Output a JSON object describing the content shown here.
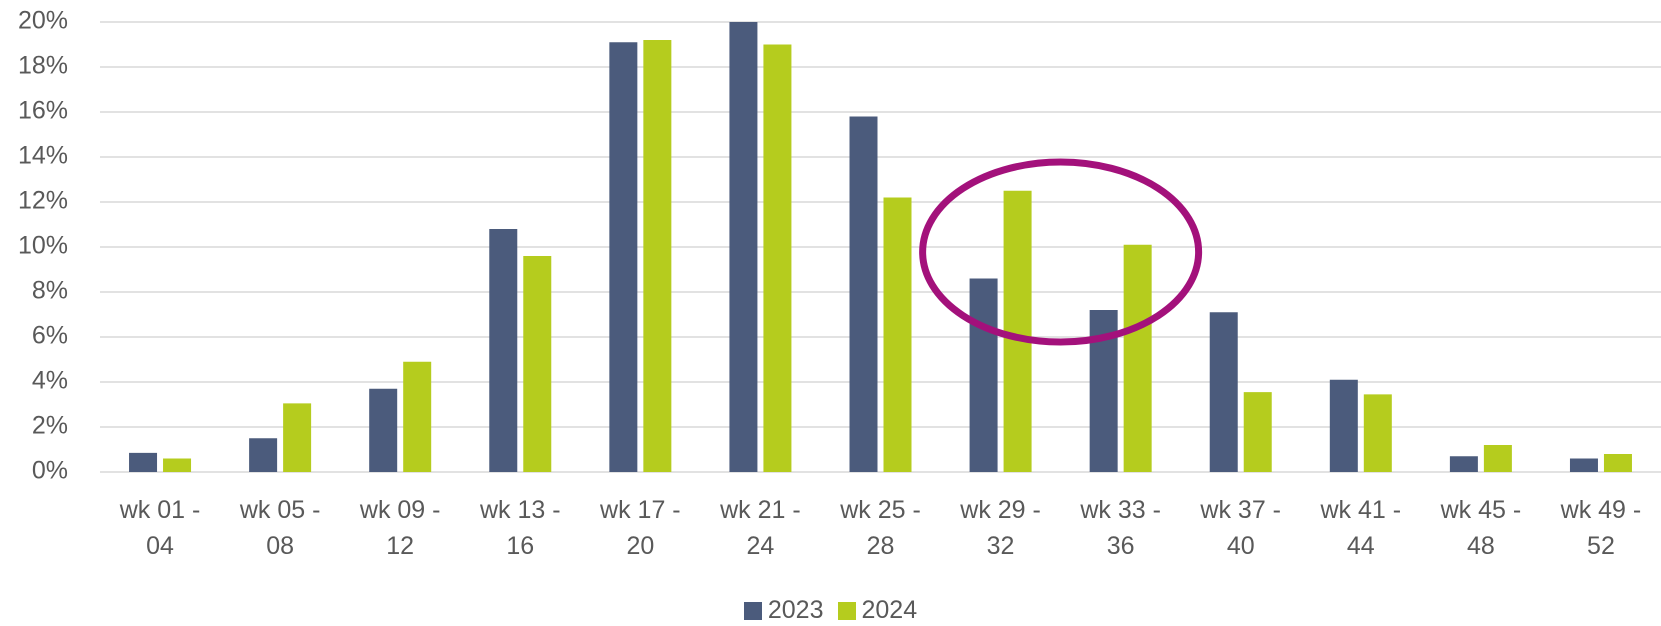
{
  "chart_data": {
    "type": "bar",
    "categories": [
      "wk 01 - 04",
      "wk 05 - 08",
      "wk 09 - 12",
      "wk 13 - 16",
      "wk 17 - 20",
      "wk 21 - 24",
      "wk 25 - 28",
      "wk 29 - 32",
      "wk 33 - 36",
      "wk 37 - 40",
      "wk 41 - 44",
      "wk 45 - 48",
      "wk 49 - 52"
    ],
    "series": [
      {
        "name": "2023",
        "color": "#4b5b7c",
        "values": [
          0.85,
          1.5,
          3.7,
          10.8,
          19.1,
          20.0,
          15.8,
          8.6,
          7.2,
          7.1,
          4.1,
          0.7,
          0.6
        ]
      },
      {
        "name": "2024",
        "color": "#b5cc1e",
        "values": [
          0.6,
          3.05,
          4.9,
          9.6,
          19.2,
          19.0,
          12.2,
          12.5,
          10.1,
          3.55,
          3.45,
          1.2,
          0.8
        ]
      }
    ],
    "ylim": [
      0,
      20
    ],
    "yticks": [
      {
        "value": 0,
        "label": "0%"
      },
      {
        "value": 2,
        "label": "2%"
      },
      {
        "value": 4,
        "label": "4%"
      },
      {
        "value": 6,
        "label": "6%"
      },
      {
        "value": 8,
        "label": "8%"
      },
      {
        "value": 10,
        "label": "10%"
      },
      {
        "value": 12,
        "label": "12%"
      },
      {
        "value": 14,
        "label": "14%"
      },
      {
        "value": 16,
        "label": "16%"
      },
      {
        "value": 18,
        "label": "18%"
      },
      {
        "value": 20,
        "label": "20%"
      }
    ],
    "grid": true,
    "legend": "bottom"
  }
}
